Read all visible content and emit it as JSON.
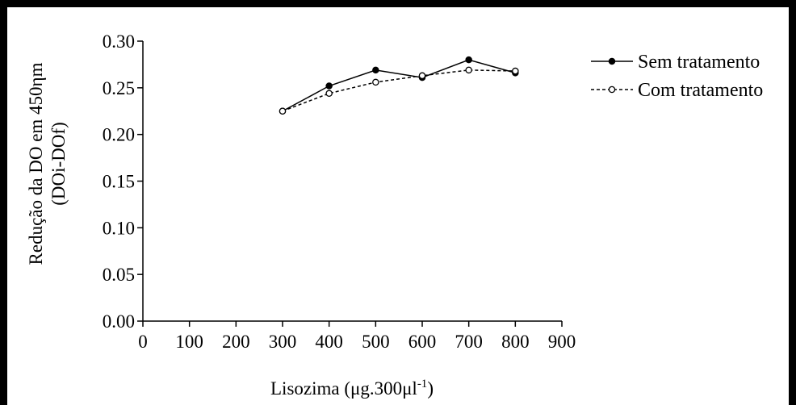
{
  "chart_data": {
    "type": "line",
    "title": "",
    "xlabel_main": "Lisozima (μg.300μl",
    "xlabel_sup": "-1",
    "xlabel_tail": ")",
    "ylabel_line1": "Redução da DO em 450ηm",
    "ylabel_line2": "(DOi-DOf)",
    "xlim": [
      0,
      900
    ],
    "ylim": [
      0,
      0.3
    ],
    "x_ticks": [
      "0",
      "100",
      "200",
      "300",
      "400",
      "500",
      "600",
      "700",
      "800",
      "900"
    ],
    "x_tick_values": [
      0,
      100,
      200,
      300,
      400,
      500,
      600,
      700,
      800,
      900
    ],
    "y_ticks": [
      "0.00",
      "0.05",
      "0.10",
      "0.15",
      "0.20",
      "0.25",
      "0.30"
    ],
    "y_tick_values": [
      0,
      0.05,
      0.1,
      0.15,
      0.2,
      0.25,
      0.3
    ],
    "legend_position": "top-right",
    "grid": false,
    "series": [
      {
        "name": "Sem tratamento",
        "style": "solid",
        "marker": "filled-circle",
        "x": [
          300,
          400,
          500,
          600,
          700,
          800
        ],
        "y": [
          0.225,
          0.252,
          0.269,
          0.261,
          0.28,
          0.266
        ]
      },
      {
        "name": "Com tratamento",
        "style": "dashed",
        "marker": "open-circle",
        "x": [
          300,
          400,
          500,
          600,
          700,
          800
        ],
        "y": [
          0.225,
          0.244,
          0.256,
          0.263,
          0.269,
          0.268
        ]
      }
    ]
  }
}
